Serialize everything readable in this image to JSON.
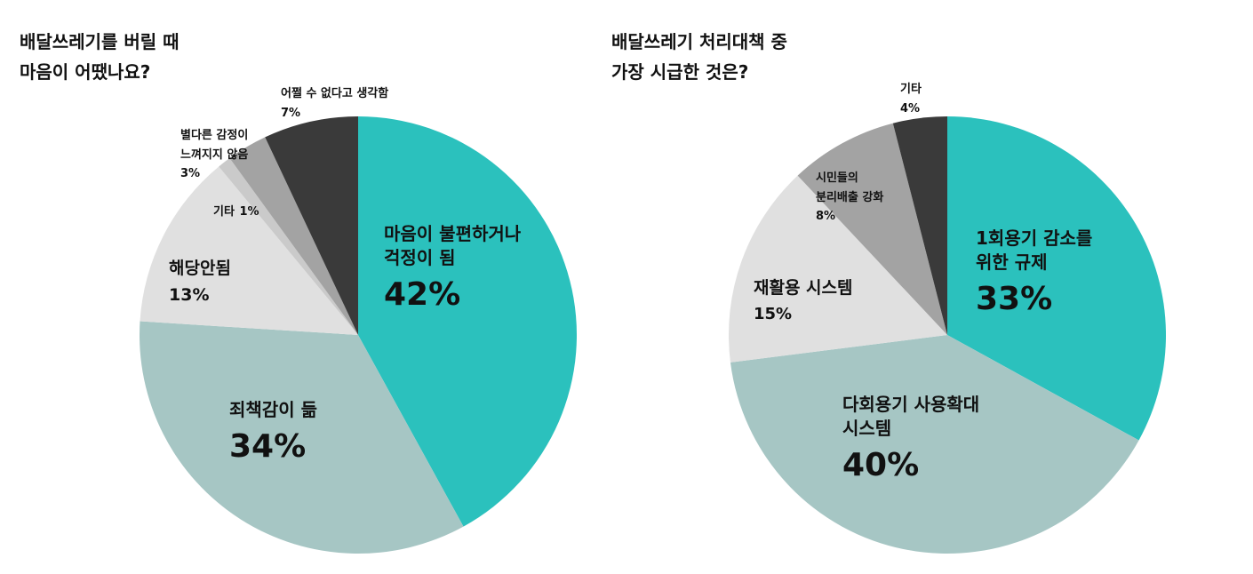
{
  "chart_data": [
    {
      "type": "pie",
      "title": "배달쓰레기를 버릴 때\n마음이 어땠나요?",
      "categories": [
        "마음이 불편하거나\n걱정이 됨",
        "죄책감이 듦",
        "해당안됨",
        "기타",
        "별다른 감정이\n느껴지지 않음",
        "어쩔 수 없다고 생각함"
      ],
      "values": [
        42,
        34,
        13,
        1,
        3,
        7
      ],
      "value_labels": [
        "42%",
        "34%",
        "13%",
        "1%",
        "3%",
        "7%"
      ],
      "colors": [
        "#2bc1bd",
        "#a6c6c4",
        "#e0e0e0",
        "#cacaca",
        "#a3a3a3",
        "#3a3a3a"
      ]
    },
    {
      "type": "pie",
      "title": "배달쓰레기 처리대책 중\n가장 시급한 것은?",
      "categories": [
        "1회용기 감소를\n위한 규제",
        "다회용기 사용확대\n시스템",
        "재활용 시스템",
        "시민들의\n분리배출 강화",
        "기타"
      ],
      "values": [
        33,
        40,
        15,
        8,
        4
      ],
      "value_labels": [
        "33%",
        "40%",
        "15%",
        "8%",
        "4%"
      ],
      "colors": [
        "#2bc1bd",
        "#a6c6c4",
        "#e0e0e0",
        "#a3a3a3",
        "#3a3a3a"
      ]
    }
  ]
}
